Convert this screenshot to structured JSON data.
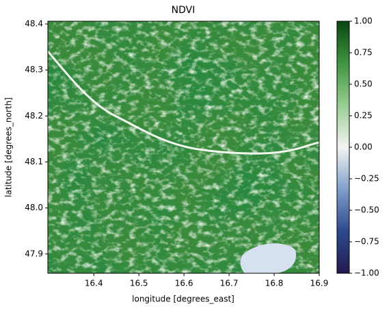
{
  "chart_data": {
    "type": "raster",
    "title": "NDVI",
    "x_label": "longitude [degrees_east]",
    "y_label": "latitude [degrees_north]",
    "xlim": [
      16.298,
      16.9
    ],
    "xticks": [
      16.4,
      16.5,
      16.6,
      16.7,
      16.8,
      16.9
    ],
    "ylim": [
      47.858,
      48.406
    ],
    "yticks": [
      47.9,
      {
        "value": 48,
        "label": "48.0"
      },
      48.1,
      48.2,
      48.3,
      48.4
    ],
    "clim": [
      -1,
      1
    ],
    "cticks": [
      {
        "value": -1,
        "label": "−1.00"
      },
      {
        "value": -0.75,
        "label": "−0.75"
      },
      {
        "value": -0.5,
        "label": "−0.50"
      },
      {
        "value": -0.25,
        "label": "−0.25"
      },
      {
        "value": 0,
        "label": "0.00"
      },
      {
        "value": 0.25,
        "label": "0.25"
      },
      {
        "value": 0.5,
        "label": "0.50"
      },
      {
        "value": 0.75,
        "label": "0.75"
      },
      {
        "value": 1,
        "label": "1.00"
      }
    ],
    "colormap": [
      "#231a4f",
      "#2c4a8c",
      "#7f9fcb",
      "#f4f4f2",
      "#98cd92",
      "#3f9441",
      "#0a4711"
    ]
  }
}
